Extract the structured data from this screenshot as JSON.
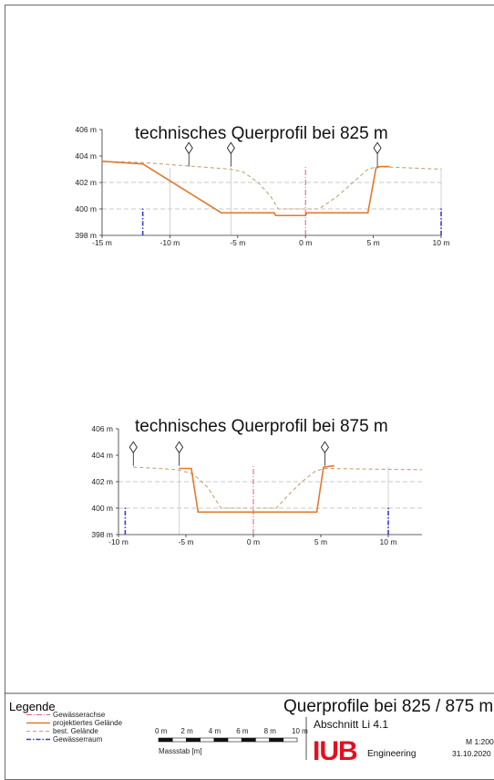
{
  "profiles": [
    {
      "title": "technisches Querprofil bei 825 m",
      "x_ticks": [
        {
          "v": -15,
          "label": "-15 m"
        },
        {
          "v": -10,
          "label": "-10 m"
        },
        {
          "v": -5,
          "label": "-5 m"
        },
        {
          "v": 0,
          "label": "0 m"
        },
        {
          "v": 5,
          "label": "5 m"
        },
        {
          "v": 10,
          "label": "10 m"
        }
      ],
      "y_ticks": [
        {
          "v": 398,
          "label": "398 m"
        },
        {
          "v": 400,
          "label": "400 m"
        },
        {
          "v": 402,
          "label": "402 m"
        },
        {
          "v": 404,
          "label": "404 m"
        },
        {
          "v": 406,
          "label": "406 m"
        }
      ],
      "xlim": [
        -15,
        10
      ],
      "ylim": [
        398,
        406
      ],
      "projected": [
        [
          -15,
          403.6
        ],
        [
          -12,
          403.4
        ],
        [
          -6.2,
          399.7
        ],
        [
          -2.3,
          399.7
        ],
        [
          -2.2,
          399.5
        ],
        [
          0,
          399.5
        ],
        [
          0.1,
          399.7
        ],
        [
          4.6,
          399.7
        ],
        [
          5.2,
          403.1
        ],
        [
          5.5,
          403.2
        ],
        [
          6.2,
          403.2
        ]
      ],
      "existing": [
        [
          -15,
          403.6
        ],
        [
          -12,
          403.5
        ],
        [
          -8,
          403.2
        ],
        [
          -5.5,
          403.0
        ],
        [
          -4.6,
          402.8
        ],
        [
          -3.5,
          402.0
        ],
        [
          -2.6,
          401.0
        ],
        [
          -2.0,
          400.0
        ],
        [
          1.0,
          400.0
        ],
        [
          2.4,
          401.0
        ],
        [
          3.5,
          402.0
        ],
        [
          4.6,
          403.0
        ],
        [
          5.3,
          403.2
        ],
        [
          10,
          403.0
        ]
      ],
      "axis_x": 0,
      "raum_x": [
        -12,
        10
      ],
      "markers_x": [
        -8.6,
        -5.5,
        5.3
      ],
      "gray_lines_x": [
        -10,
        -5.5,
        10
      ]
    },
    {
      "title": "technisches Querprofil bei 875 m",
      "x_ticks": [
        {
          "v": -10,
          "label": "-10 m"
        },
        {
          "v": -5,
          "label": "-5 m"
        },
        {
          "v": 0,
          "label": "0 m"
        },
        {
          "v": 5,
          "label": "5 m"
        },
        {
          "v": 10,
          "label": "10 m"
        }
      ],
      "y_ticks": [
        {
          "v": 398,
          "label": "398 m"
        },
        {
          "v": 400,
          "label": "400 m"
        },
        {
          "v": 402,
          "label": "402 m"
        },
        {
          "v": 404,
          "label": "404 m"
        },
        {
          "v": 406,
          "label": "406 m"
        }
      ],
      "xlim": [
        -10,
        12.5
      ],
      "ylim": [
        398,
        406
      ],
      "projected": [
        [
          -5.5,
          403.0
        ],
        [
          -4.6,
          403.0
        ],
        [
          -4.1,
          399.7
        ],
        [
          4.7,
          399.7
        ],
        [
          5.2,
          403.1
        ],
        [
          6.0,
          403.2
        ]
      ],
      "existing": [
        [
          -8.9,
          403.1
        ],
        [
          -7.0,
          403.0
        ],
        [
          -5.6,
          402.9
        ],
        [
          -4.5,
          402.6
        ],
        [
          -3.4,
          401.6
        ],
        [
          -2.4,
          400.0
        ],
        [
          -1.4,
          400.0
        ],
        [
          1.7,
          400.0
        ],
        [
          2.6,
          401.0
        ],
        [
          3.6,
          402.0
        ],
        [
          4.6,
          402.8
        ],
        [
          5.3,
          403.0
        ],
        [
          12.5,
          402.9
        ]
      ],
      "axis_x": 0,
      "raum_x": [
        -9.5,
        10
      ],
      "markers_x": [
        -8.9,
        -5.5,
        5.3
      ],
      "gray_lines_x": [
        -5.5,
        10
      ]
    }
  ],
  "legend": {
    "title": "Legende",
    "items": [
      {
        "label": "Gewässerachse",
        "color": "#d35f8a"
      },
      {
        "label": "projektiertes Gelände",
        "color": "#e07a2e"
      },
      {
        "label": "best. Gelände",
        "color": "#c4a27a"
      },
      {
        "label": "Gewässerraum",
        "color": "#3a3ad6"
      }
    ]
  },
  "scalebar": {
    "ticks": [
      "0 m",
      "2 m",
      "4 m",
      "6 m",
      "8 m",
      "10 m"
    ],
    "label": "Massstab [m]"
  },
  "titleblock": {
    "title": "Querprofile bei 825 / 875 m",
    "section": "Abschnitt Li 4.1",
    "logo": "IUB",
    "engineering": "Engineering",
    "scale": "M 1:200",
    "date": "31.10.2020"
  },
  "colors": {
    "projected": "#e07a2e",
    "existing": "#c4a27a",
    "axis": "#d35f8a",
    "raum": "#3a3ad6",
    "logo": "#e3101f"
  }
}
